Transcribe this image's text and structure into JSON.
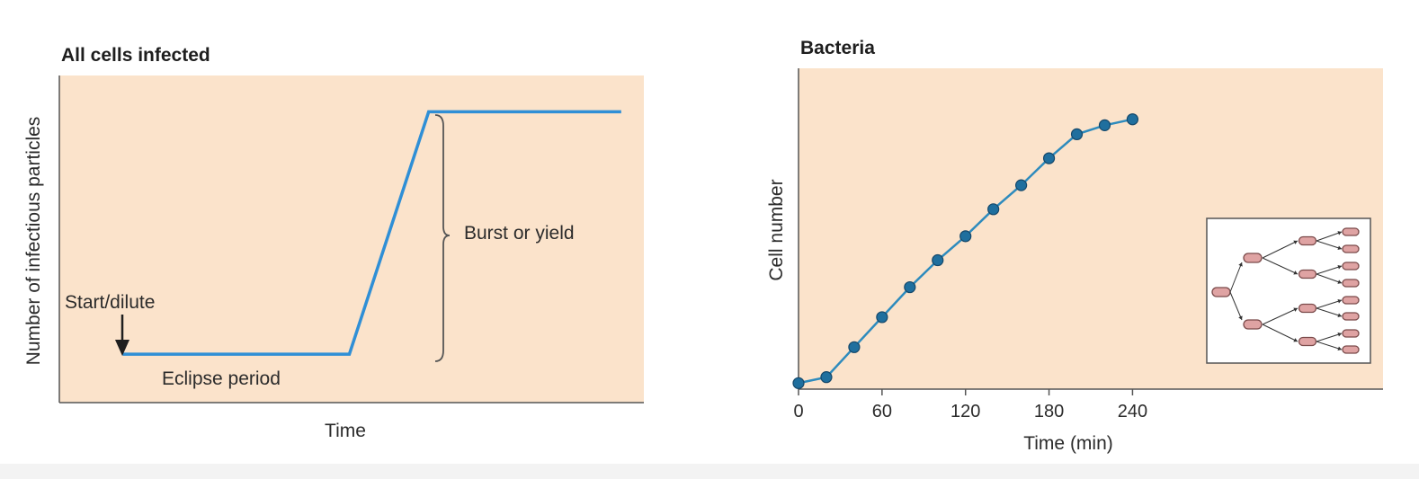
{
  "chart_data": [
    {
      "type": "line",
      "title": "All cells infected",
      "xlabel": "Time",
      "ylabel": "Number of infectious particles",
      "x": [
        0,
        1,
        1.35,
        2.2
      ],
      "series": [
        {
          "values": [
            0.08,
            0.08,
            0.88,
            0.88
          ]
        }
      ],
      "xlim": [
        -0.28,
        2.3
      ],
      "ylim": [
        -0.08,
        1.0
      ],
      "grid": false,
      "annotations": {
        "start": "Start/dilute",
        "eclipse": "Eclipse period",
        "burst": "Burst or yield"
      },
      "colors": {
        "background": "#fbe3cb",
        "line": "#2f8fd6"
      }
    },
    {
      "type": "line",
      "title": "Bacteria",
      "xlabel": "Time (min)",
      "ylabel": "Cell number",
      "x": [
        0,
        20,
        40,
        60,
        80,
        100,
        120,
        140,
        160,
        180,
        200,
        220,
        240
      ],
      "series": [
        {
          "values": [
            0.0,
            0.02,
            0.12,
            0.22,
            0.32,
            0.41,
            0.49,
            0.58,
            0.66,
            0.75,
            0.83,
            0.86,
            0.88
          ]
        }
      ],
      "xticks": [
        0,
        60,
        120,
        180,
        240
      ],
      "xlim": [
        0,
        420
      ],
      "ylim": [
        -0.02,
        1.05
      ],
      "grid": false,
      "inset": "binary-fission-diagram",
      "colors": {
        "background": "#fbe3cb",
        "line": "#2e8bbd",
        "marker": "#1f6f9e"
      }
    }
  ]
}
